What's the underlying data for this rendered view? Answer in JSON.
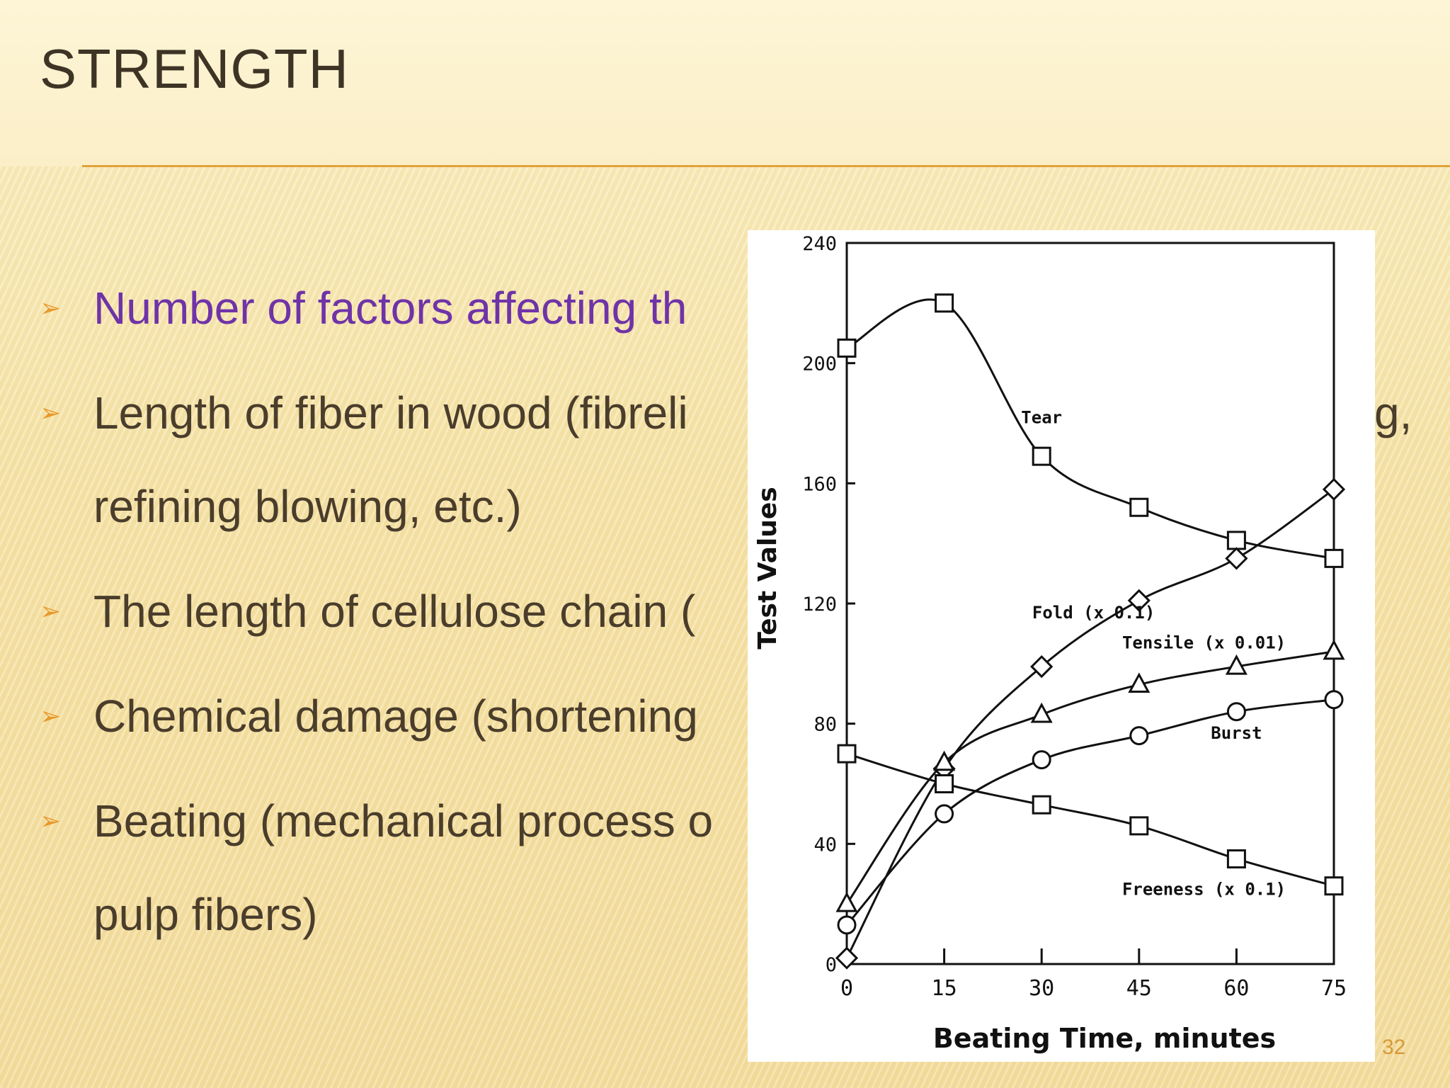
{
  "slide": {
    "title": "STRENGTH",
    "page_number": "32",
    "colors": {
      "title": "#3e3425",
      "accent": "#e0a33a",
      "highlight": "#6f33a8",
      "bullet_arrow": "#e89a2c"
    }
  },
  "bullets": [
    {
      "line1": "Number of factors affecting th",
      "line2": ""
    },
    {
      "line1": "Length of fiber in wood (fibreli",
      "line2": "refining blowing, etc.)",
      "tail": "g,"
    },
    {
      "line1": "The length of cellulose chain (",
      "line2": ""
    },
    {
      "line1": "Chemical damage (shortening",
      "line2": ""
    },
    {
      "line1": "Beating (mechanical process o",
      "line2": "pulp fibers)"
    }
  ],
  "chart_data": {
    "type": "line",
    "xlabel": "Beating Time, minutes",
    "ylabel": "Test Values",
    "x": [
      0,
      15,
      30,
      45,
      60,
      75
    ],
    "xlim": [
      0,
      75
    ],
    "ylim": [
      0,
      240
    ],
    "x_ticks": [
      "0",
      "15",
      "30",
      "45",
      "60",
      "75"
    ],
    "y_ticks": [
      "0",
      "40",
      "80",
      "120",
      "160",
      "200",
      "240"
    ],
    "grid": false,
    "series": [
      {
        "name": "Tear",
        "marker": "square",
        "values": [
          205,
          220,
          169,
          152,
          141,
          135
        ]
      },
      {
        "name": "Fold (x 0.1)",
        "marker": "diamond",
        "values": [
          2,
          65,
          99,
          121,
          135,
          158
        ]
      },
      {
        "name": "Tensile (x 0.01)",
        "marker": "triangle",
        "values": [
          20,
          67,
          83,
          93,
          99,
          104
        ]
      },
      {
        "name": "Burst",
        "marker": "circle",
        "values": [
          13,
          50,
          68,
          76,
          84,
          88
        ]
      },
      {
        "name": "Freeness (x 0.1)",
        "marker": "square",
        "values": [
          70,
          60,
          53,
          46,
          35,
          26
        ]
      }
    ]
  }
}
